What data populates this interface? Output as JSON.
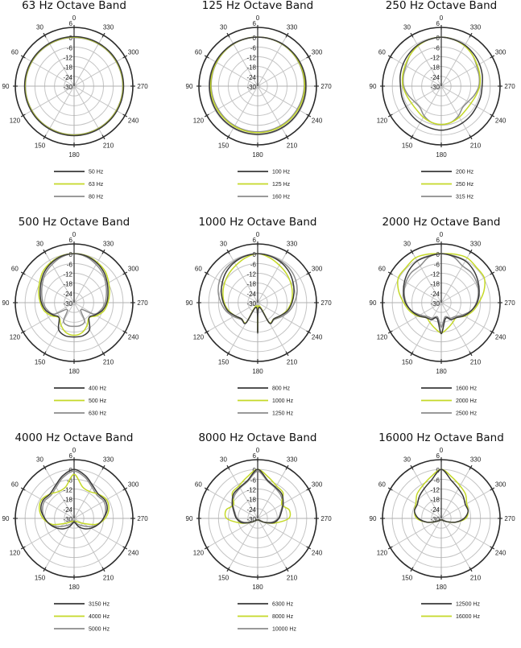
{
  "colors": {
    "series": [
      "#3a3a3a",
      "#c5d928",
      "#8c8c8c"
    ],
    "grid": "#c4c4c4",
    "frame": "#2a2a2a"
  },
  "chart_data": [
    {
      "type": "polar",
      "title": "63 Hz Octave Band",
      "angle_labels": [
        "0",
        "30",
        "60",
        "90",
        "120",
        "150",
        "180",
        "210",
        "240",
        "270",
        "300",
        "330"
      ],
      "db_labels": [
        "6",
        "0",
        "-6",
        "-12",
        "-18",
        "-24",
        "-30"
      ],
      "rlim": [
        -30,
        6
      ],
      "angles_deg": [
        0,
        15,
        30,
        45,
        60,
        75,
        90,
        105,
        120,
        135,
        150,
        165,
        180
      ],
      "symmetric": true,
      "series": [
        {
          "name": "50 Hz",
          "values": [
            0.3,
            0.3,
            0.3,
            0.3,
            0.3,
            0.3,
            0.3,
            0.3,
            0.3,
            0.3,
            0.3,
            0.3,
            0.3
          ]
        },
        {
          "name": "63 Hz",
          "values": [
            0,
            0,
            0,
            0,
            0,
            0,
            0,
            0,
            0,
            0,
            0,
            0,
            0
          ]
        },
        {
          "name": "80 Hz",
          "values": [
            -0.2,
            -0.2,
            -0.2,
            -0.2,
            -0.2,
            -0.2,
            -0.2,
            -0.2,
            -0.2,
            -0.2,
            -0.2,
            -0.2,
            -0.2
          ]
        }
      ]
    },
    {
      "type": "polar",
      "title": "125 Hz Octave Band",
      "angle_labels": [
        "0",
        "30",
        "60",
        "90",
        "120",
        "150",
        "180",
        "210",
        "240",
        "270",
        "300",
        "330"
      ],
      "db_labels": [
        "6",
        "0",
        "-6",
        "-12",
        "-18",
        "-24",
        "-30"
      ],
      "rlim": [
        -30,
        6
      ],
      "angles_deg": [
        0,
        15,
        30,
        45,
        60,
        75,
        90,
        105,
        120,
        135,
        150,
        165,
        180
      ],
      "symmetric": true,
      "series": [
        {
          "name": "100 Hz",
          "values": [
            0,
            0,
            0,
            -0.2,
            -0.3,
            -0.4,
            -0.5,
            -0.5,
            -0.5,
            -0.5,
            -0.5,
            -0.5,
            -0.5
          ]
        },
        {
          "name": "125 Hz",
          "values": [
            0,
            0,
            -0.2,
            -0.5,
            -0.8,
            -1,
            -1.2,
            -1.3,
            -1.4,
            -1.5,
            -1.5,
            -1.5,
            -1.5
          ]
        },
        {
          "name": "160 Hz",
          "values": [
            0,
            -0.1,
            -0.3,
            -0.6,
            -1,
            -1.3,
            -1.5,
            -1.8,
            -2,
            -2,
            -2,
            -2,
            -2
          ]
        }
      ]
    },
    {
      "type": "polar",
      "title": "250 Hz Octave Band",
      "angle_labels": [
        "0",
        "30",
        "60",
        "90",
        "120",
        "150",
        "180",
        "210",
        "240",
        "270",
        "300",
        "330"
      ],
      "db_labels": [
        "6",
        "0",
        "-6",
        "-12",
        "-18",
        "-24",
        "-30"
      ],
      "rlim": [
        -30,
        6
      ],
      "angles_deg": [
        0,
        15,
        30,
        45,
        60,
        75,
        90,
        105,
        120,
        135,
        150,
        165,
        180
      ],
      "symmetric": true,
      "series": [
        {
          "name": "200 Hz",
          "values": [
            0,
            -0.5,
            -1,
            -2,
            -3,
            -4,
            -5,
            -5,
            -5,
            -4.5,
            -4,
            -3.5,
            -3
          ]
        },
        {
          "name": "250 Hz",
          "values": [
            0,
            -0.5,
            -1.5,
            -3,
            -4.5,
            -5.5,
            -6.5,
            -8,
            -9,
            -9,
            -8,
            -7,
            -6.5
          ]
        },
        {
          "name": "315 Hz",
          "values": [
            0,
            -0.5,
            -1.5,
            -3,
            -5,
            -6,
            -7,
            -9,
            -11,
            -11.5,
            -9,
            -7,
            -6.5
          ]
        }
      ]
    },
    {
      "type": "polar",
      "title": "500 Hz Octave Band",
      "angle_labels": [
        "0",
        "30",
        "60",
        "90",
        "120",
        "150",
        "180",
        "210",
        "240",
        "270",
        "300",
        "330"
      ],
      "db_labels": [
        "6",
        "0",
        "-6",
        "-12",
        "-18",
        "-24",
        "-30"
      ],
      "rlim": [
        -30,
        6
      ],
      "angles_deg": [
        0,
        15,
        30,
        45,
        60,
        75,
        90,
        105,
        120,
        135,
        150,
        165,
        180
      ],
      "symmetric": true,
      "series": [
        {
          "name": "400 Hz",
          "values": [
            0,
            -0.5,
            -2,
            -4,
            -6.5,
            -8.5,
            -10,
            -12,
            -15,
            -17,
            -11,
            -9,
            -9
          ]
        },
        {
          "name": "500 Hz",
          "values": [
            0,
            -0.3,
            -1.5,
            -3,
            -5.5,
            -7.5,
            -9.3,
            -11,
            -14,
            -17,
            -14,
            -11,
            -10
          ]
        },
        {
          "name": "630 Hz",
          "values": [
            0,
            -1,
            -3,
            -5,
            -7.5,
            -9.5,
            -11,
            -13,
            -16,
            -24,
            -17,
            -15.5,
            -15.5
          ]
        }
      ]
    },
    {
      "type": "polar",
      "title": "1000 Hz Octave Band",
      "angle_labels": [
        "0",
        "30",
        "60",
        "90",
        "120",
        "150",
        "180",
        "210",
        "240",
        "270",
        "300",
        "330"
      ],
      "db_labels": [
        "6",
        "0",
        "-6",
        "-12",
        "-18",
        "-24",
        "-30"
      ],
      "rlim": [
        -30,
        6
      ],
      "angles_deg": [
        0,
        15,
        30,
        45,
        60,
        75,
        90,
        105,
        120,
        135,
        150,
        165,
        180
      ],
      "symmetric": true,
      "series": [
        {
          "name": "800 Hz",
          "values": [
            0,
            -0.5,
            -1.5,
            -3,
            -5,
            -7,
            -9,
            -11,
            -14,
            -16,
            -15.5,
            -27,
            -11.5
          ]
        },
        {
          "name": "1000 Hz",
          "values": [
            0,
            -1.5,
            -3.5,
            -5,
            -6.5,
            -8,
            -9.5,
            -11.5,
            -14,
            -16,
            -16,
            -28,
            -12
          ]
        },
        {
          "name": "1250 Hz",
          "values": [
            0,
            -0.3,
            -0.8,
            -1.5,
            -3,
            -5,
            -7.5,
            -10,
            -13,
            -15.5,
            -16,
            -27,
            -11
          ]
        }
      ]
    },
    {
      "type": "polar",
      "title": "2000 Hz Octave Band",
      "angle_labels": [
        "0",
        "30",
        "60",
        "90",
        "120",
        "150",
        "180",
        "210",
        "240",
        "270",
        "300",
        "330"
      ],
      "db_labels": [
        "6",
        "0",
        "-6",
        "-12",
        "-18",
        "-24",
        "-30"
      ],
      "rlim": [
        -30,
        6
      ],
      "angles_deg": [
        0,
        15,
        30,
        45,
        60,
        75,
        90,
        105,
        120,
        135,
        150,
        165,
        180
      ],
      "symmetric": true,
      "series": [
        {
          "name": "1600 Hz",
          "values": [
            0,
            -0.5,
            -0.5,
            -2,
            -4,
            -6,
            -8,
            -11,
            -14,
            -17,
            -18,
            -20,
            -11
          ]
        },
        {
          "name": "2000 Hz",
          "values": [
            0,
            0.8,
            1.7,
            0.5,
            0.4,
            -3,
            -7,
            -10,
            -13.5,
            -17,
            -16,
            -14,
            -11.5
          ]
        },
        {
          "name": "2500 Hz",
          "values": [
            0,
            -1,
            -4,
            -4,
            -5,
            -6.5,
            -8.5,
            -11,
            -15,
            -18,
            -19,
            -21,
            -15
          ]
        }
      ]
    },
    {
      "type": "polar",
      "title": "4000 Hz Octave Band",
      "angle_labels": [
        "0",
        "30",
        "60",
        "90",
        "120",
        "150",
        "180",
        "210",
        "240",
        "270",
        "300",
        "330"
      ],
      "db_labels": [
        "6",
        "0",
        "-6",
        "-12",
        "-18",
        "-24",
        "-30"
      ],
      "rlim": [
        -30,
        6
      ],
      "angles_deg": [
        0,
        15,
        30,
        45,
        60,
        75,
        90,
        105,
        120,
        135,
        150,
        165,
        180
      ],
      "symmetric": true,
      "series": [
        {
          "name": "3150 Hz",
          "values": [
            0,
            -3,
            -7,
            -9,
            -8,
            -9,
            -12,
            -15,
            -18,
            -21,
            -24,
            -27,
            -28
          ]
        },
        {
          "name": "4000 Hz",
          "values": [
            -3,
            -10,
            -11,
            -9,
            -7,
            -8,
            -11,
            -16,
            -24,
            -27,
            -28,
            -28,
            -28
          ]
        },
        {
          "name": "5000 Hz",
          "values": [
            -1,
            -4,
            -8,
            -10,
            -9,
            -10,
            -12,
            -15,
            -20,
            -24,
            -26,
            -28,
            -29
          ]
        }
      ]
    },
    {
      "type": "polar",
      "title": "8000 Hz Octave Band",
      "angle_labels": [
        "0",
        "30",
        "60",
        "90",
        "120",
        "150",
        "180",
        "210",
        "240",
        "270",
        "300",
        "330"
      ],
      "db_labels": [
        "6",
        "0",
        "-6",
        "-12",
        "-18",
        "-24",
        "-30"
      ],
      "rlim": [
        -30,
        6
      ],
      "angles_deg": [
        0,
        15,
        30,
        45,
        60,
        75,
        90,
        105,
        120,
        135,
        150,
        165,
        180
      ],
      "symmetric": true,
      "series": [
        {
          "name": "6300 Hz",
          "values": [
            0,
            -6,
            -8,
            -9,
            -12,
            -15,
            -17,
            -20,
            -25,
            -28,
            -29,
            -29,
            -29
          ]
        },
        {
          "name": "8000 Hz",
          "values": [
            0,
            -4,
            -7,
            -8,
            -13,
            -10,
            -11,
            -19,
            -25,
            -28,
            -29,
            -29,
            -29
          ]
        },
        {
          "name": "10000 Hz",
          "values": [
            -1,
            -6.5,
            -8.5,
            -10,
            -12.5,
            -15.5,
            -17.5,
            -21,
            -25.5,
            -28,
            -29,
            -29,
            -29
          ]
        }
      ]
    },
    {
      "type": "polar",
      "title": "16000 Hz Octave Band",
      "angle_labels": [
        "0",
        "30",
        "60",
        "90",
        "120",
        "150",
        "180",
        "210",
        "240",
        "270",
        "300",
        "330"
      ],
      "db_labels": [
        "6",
        "0",
        "-6",
        "-12",
        "-18",
        "-24",
        "-30"
      ],
      "rlim": [
        -30,
        6
      ],
      "angles_deg": [
        0,
        15,
        30,
        45,
        60,
        75,
        90,
        105,
        120,
        135,
        150,
        165,
        180
      ],
      "symmetric": true,
      "series": [
        {
          "name": "12500 Hz",
          "values": [
            0,
            -6,
            -9,
            -11,
            -13,
            -13,
            -16,
            -21,
            -26,
            -28,
            -29,
            -29,
            -29
          ]
        },
        {
          "name": "16000 Hz",
          "values": [
            0,
            -4,
            -7,
            -9,
            -12,
            -13,
            -15,
            -21,
            -26,
            -28,
            -29,
            -29,
            -29
          ]
        }
      ]
    }
  ]
}
